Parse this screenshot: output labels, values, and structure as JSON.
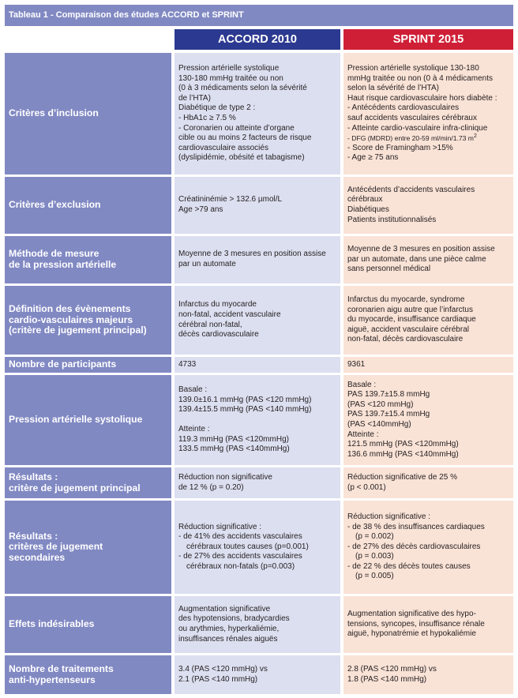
{
  "title": "Tableau 1 - Comparaison des études ACCORD et SPRINT",
  "headers": {
    "accord": "ACCORD 2010",
    "sprint": "SPRINT 2015"
  },
  "rows": [
    {
      "label": [
        "Critères d’inclusion"
      ],
      "accord": [
        "Pression artérielle systolique",
        "130-180 mmHg traitée ou non",
        "(0 à 3 médicaments selon la sévérité",
        "de l’HTA)",
        "Diabétique de type 2 :",
        "- HbA1c ≥ 7.5 %",
        "- Coronarien ou atteinte d’organe",
        "cible ou au moins 2 facteurs de risque",
        "cardiovasculaire associés",
        "(dyslipidémie, obésité et tabagisme)"
      ],
      "sprint": [
        "Pression artérielle systolique 130-180",
        "mmHg traitée ou non (0 à 4 médicaments",
        "selon la sévérité de l’HTA)",
        "Haut risque cardiovasculaire hors diabète :",
        "- Antécédents cardiovasculaires",
        "sauf accidents vasculaires cérébraux",
        "- Atteinte cardio-vasculaire infra-clinique",
        "- DFG (MDRD) entre 20-59 ml/min/1.73 m",
        "- Score de Framingham >15%",
        "- Age ≥ 75 ans"
      ]
    },
    {
      "label": [
        "Critères d’exclusion"
      ],
      "accord": [
        "Créatininémie > 132.6 µmol/L",
        "Age >79 ans"
      ],
      "sprint": [
        "Antécédents d’accidents vasculaires",
        "cérébraux",
        "Diabétiques",
        "Patients institutionnalisés"
      ]
    },
    {
      "label": [
        "Méthode de mesure",
        "de la pression artérielle"
      ],
      "accord": [
        "Moyenne de 3 mesures en position assise",
        "par un automate"
      ],
      "sprint": [
        "Moyenne de 3 mesures en position assise",
        "par un automate, dans une pièce calme",
        "sans personnel médical"
      ]
    },
    {
      "label": [
        "Définition des évènements",
        "cardio-vasculaires majeurs",
        "(critère de jugement principal)"
      ],
      "accord": [
        "Infarctus du myocarde",
        "non-fatal, accident vasculaire",
        "cérébral non-fatal,",
        "décès cardiovasculaire"
      ],
      "sprint": [
        "Infarctus du myocarde, syndrome",
        "coronarien aigu autre que l’infarctus",
        "du myocarde, insuffisance cardiaque",
        "aiguë, accident vasculaire cérébral",
        "non-fatal, décès cardiovasculaire"
      ]
    },
    {
      "label": [
        "Nombre de participants"
      ],
      "accord": [
        "4733"
      ],
      "sprint": [
        "9361"
      ]
    },
    {
      "label": [
        "Pression artérielle systolique"
      ],
      "accord": [
        "Basale :",
        "139.0±16.1 mmHg (PAS <120 mmHg)",
        "139.4±15.5 mmHg (PAS <140 mmHg)",
        "",
        "Atteinte :",
        "119.3 mmHg (PAS <120mmHg)",
        "133.5 mmHg (PAS <140mmHg)"
      ],
      "sprint": [
        "Basale :",
        "PAS 139.7±15.8 mmHg",
        "(PAS <120 mmHg)",
        "PAS 139.7±15.4 mmHg",
        "(PAS <140mmHg)",
        "Atteinte :",
        "121.5 mmHg (PAS <120mmHg)",
        "136.6 mmHg (PAS <140mmHg)"
      ]
    },
    {
      "label": [
        "Résultats :",
        "critère de jugement principal"
      ],
      "accord": [
        "Réduction non significative",
        "de 12 % (p = 0.20)"
      ],
      "sprint": [
        "Réduction significative de 25 %",
        "(p < 0.001)"
      ]
    },
    {
      "label": [
        "Résultats :",
        "critères de jugement",
        "secondaires"
      ],
      "accord": [
        "Réduction significative :",
        "- de 41% des accidents vasculaires",
        "cérébraux toutes causes (p=0.001)",
        "- de 27% des accidents vasculaires",
        "cérébraux non-fatals (p=0.003)"
      ],
      "sprint": [
        "Réduction significative :",
        "- de 38 % des insuffisances cardiaques",
        "(p = 0.002)",
        "- de 27% des décès cardiovasculaires",
        "(p = 0.003)",
        "- de 22 % des décès toutes causes",
        "(p = 0.005)"
      ]
    },
    {
      "label": [
        "Effets indésirables"
      ],
      "accord": [
        "Augmentation significative",
        "des hypotensions, bradycardies",
        "ou arythmies, hyperkaliémie,",
        "insuffisances rénales aiguës"
      ],
      "sprint": [
        "Augmentation significative des hypo-",
        "tensions, syncopes, insuffisance rénale",
        "aiguë, hyponatrémie et hypokaliémie"
      ]
    },
    {
      "label": [
        "Nombre de traitements",
        "anti-hypertenseurs"
      ],
      "accord": [
        "3.4 (PAS <120 mmHg) vs",
        "2.1 (PAS <140 mmHg)"
      ],
      "sprint": [
        "2.8 (PAS <120 mmHg) vs",
        "1.8 (PAS <140 mmHg)"
      ]
    }
  ],
  "superscript": "2"
}
